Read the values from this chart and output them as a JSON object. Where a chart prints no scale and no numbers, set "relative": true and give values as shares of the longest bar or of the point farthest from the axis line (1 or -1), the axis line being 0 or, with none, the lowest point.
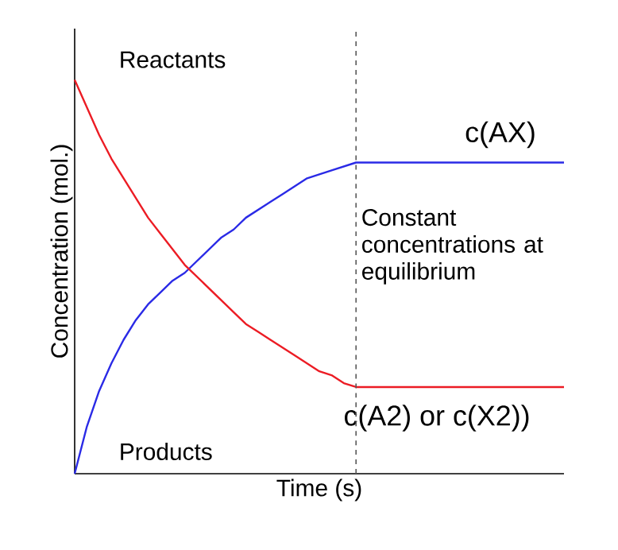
{
  "chart_data": {
    "type": "line",
    "relative": true,
    "xlabel": "Time (s)",
    "ylabel": "Concentration (mol.)",
    "categories": [
      null,
      null,
      null,
      null,
      null,
      null,
      null,
      null,
      null,
      null,
      null,
      null,
      null,
      null,
      null,
      null,
      null,
      null,
      null,
      null,
      null,
      null,
      null,
      null,
      null,
      null,
      null,
      null,
      null,
      null,
      null,
      null,
      null,
      null,
      null,
      null,
      null,
      null,
      null,
      null,
      null
    ],
    "series": [
      {
        "name": "c(AX)",
        "color": "#2a2ae6",
        "values": [
          0,
          0.12,
          0.21,
          0.28,
          0.34,
          0.39,
          0.43,
          0.46,
          0.49,
          0.51,
          0.54,
          0.57,
          0.6,
          0.62,
          0.65,
          0.67,
          0.69,
          0.71,
          0.73,
          0.75,
          0.76,
          0.77,
          0.78,
          0.79,
          0.79,
          0.79,
          0.79,
          0.79,
          0.79,
          0.79,
          0.79,
          0.79,
          0.79,
          0.79,
          0.79,
          0.79,
          0.79,
          0.79,
          0.79,
          0.79,
          0.79
        ]
      },
      {
        "name": "c(A2) or c(X2))",
        "color": "#ec1c24",
        "values": [
          1,
          0.93,
          0.86,
          0.8,
          0.75,
          0.7,
          0.65,
          0.61,
          0.57,
          0.53,
          0.5,
          0.47,
          0.44,
          0.41,
          0.38,
          0.36,
          0.34,
          0.32,
          0.3,
          0.28,
          0.26,
          0.25,
          0.23,
          0.22,
          0.22,
          0.22,
          0.22,
          0.22,
          0.22,
          0.22,
          0.22,
          0.22,
          0.22,
          0.22,
          0.22,
          0.22,
          0.22,
          0.22,
          0.22,
          0.22,
          0.22
        ]
      }
    ],
    "annotations": [
      "Reactants",
      "Products",
      "Constant concentrations at equilibrium"
    ],
    "legend": false
  }
}
